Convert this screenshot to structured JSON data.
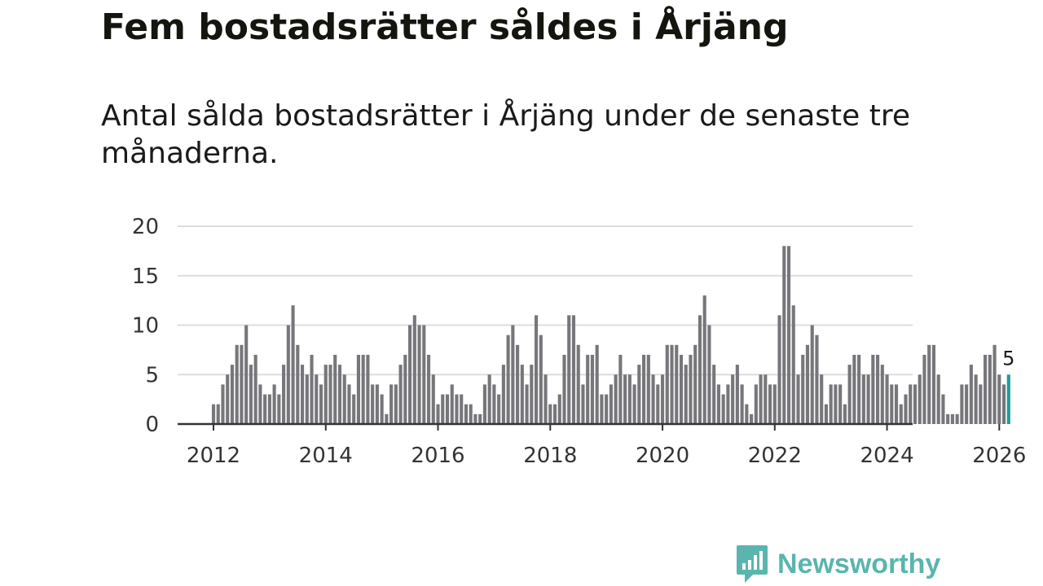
{
  "title": "Fem bostadsrätter såldes i Årjäng",
  "subtitle": "Antal sålda bostadsrätter i Årjäng under de senaste tre månaderna.",
  "brand": {
    "name": "Newsworthy",
    "color": "#5ab5ae",
    "icon": "bar-chart-speech-icon"
  },
  "colors": {
    "bar": "#77767b",
    "highlight": "#1f9c9c",
    "grid": "#dddddd",
    "axis": "#333333"
  },
  "chart_data": {
    "type": "bar",
    "title": "Fem bostadsrätter såldes i Årjäng",
    "xlabel": "",
    "ylabel": "",
    "ylim": [
      0,
      20
    ],
    "yticks": [
      0,
      5,
      10,
      15,
      20
    ],
    "xticks": [
      {
        "label": "2012",
        "month_index": 0
      },
      {
        "label": "2014",
        "month_index": 24
      },
      {
        "label": "2016",
        "month_index": 48
      },
      {
        "label": "2018",
        "month_index": 72
      },
      {
        "label": "2020",
        "month_index": 96
      },
      {
        "label": "2022",
        "month_index": 120
      },
      {
        "label": "2024",
        "month_index": 144
      },
      {
        "label": "2026",
        "month_index": 168
      }
    ],
    "start": "2012-01",
    "values": [
      2,
      2,
      4,
      5,
      6,
      8,
      8,
      10,
      6,
      7,
      4,
      3,
      3,
      4,
      3,
      6,
      10,
      12,
      8,
      6,
      5,
      7,
      5,
      4,
      6,
      6,
      7,
      6,
      5,
      4,
      3,
      7,
      7,
      7,
      4,
      4,
      3,
      1,
      4,
      4,
      6,
      7,
      10,
      11,
      10,
      10,
      7,
      5,
      2,
      3,
      3,
      4,
      3,
      3,
      2,
      2,
      1,
      1,
      4,
      5,
      4,
      3,
      6,
      9,
      10,
      8,
      6,
      4,
      6,
      11,
      9,
      5,
      2,
      2,
      3,
      7,
      11,
      11,
      8,
      4,
      7,
      7,
      8,
      3,
      3,
      4,
      5,
      7,
      5,
      5,
      4,
      6,
      7,
      7,
      5,
      4,
      5,
      8,
      8,
      8,
      7,
      6,
      7,
      8,
      11,
      13,
      10,
      6,
      4,
      3,
      4,
      5,
      6,
      4,
      2,
      1,
      4,
      5,
      5,
      4,
      4,
      11,
      18,
      18,
      12,
      5,
      7,
      8,
      10,
      9,
      5,
      2,
      4,
      4,
      4,
      2,
      6,
      7,
      7,
      5,
      5,
      7,
      7,
      6,
      5,
      4,
      4,
      2,
      3,
      4,
      4,
      5,
      7,
      8,
      8,
      5,
      3,
      1,
      1,
      1,
      4,
      4,
      6,
      5,
      4,
      7,
      7,
      8,
      5,
      4,
      5
    ],
    "highlight_last": true,
    "data_label": {
      "index": 170,
      "text": "5"
    }
  }
}
